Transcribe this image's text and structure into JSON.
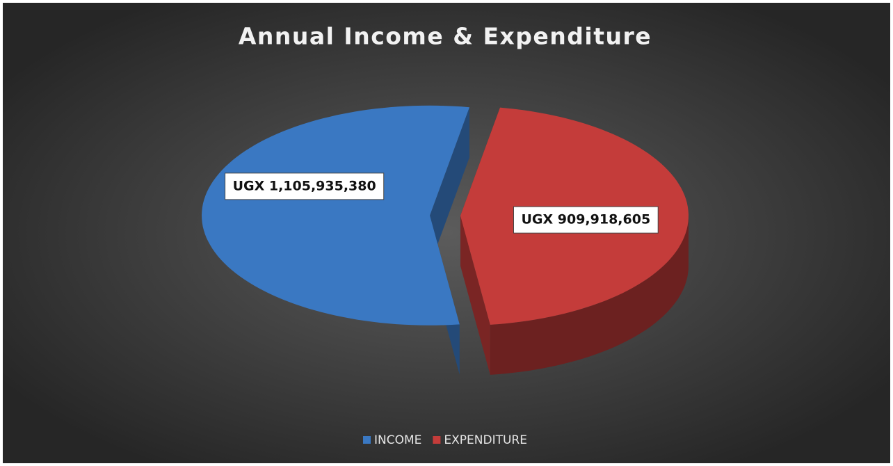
{
  "chart_data": {
    "type": "pie",
    "title": "Annual Income & Expenditure",
    "categories": [
      "INCOME",
      "EXPENDITURE"
    ],
    "values": [
      1105935380,
      909918605
    ],
    "value_labels": [
      "UGX 1,105,935,380",
      "UGX 909,918,605"
    ],
    "colors": [
      "#3a78c2",
      "#c43c3a"
    ],
    "legend": "bottom"
  }
}
